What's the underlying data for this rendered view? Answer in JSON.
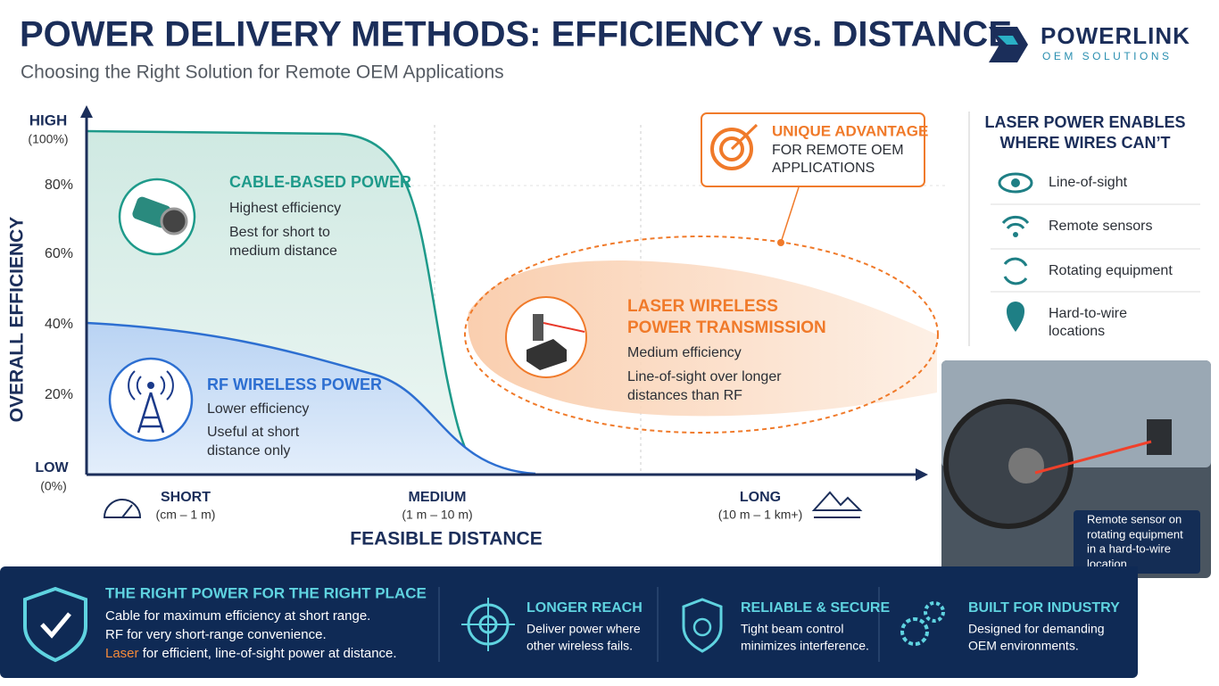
{
  "header": {
    "title": "POWER DELIVERY METHODS: EFFICIENCY vs. DISTANCE",
    "subtitle": "Choosing the Right Solution for Remote OEM Applications"
  },
  "logo": {
    "name": "POWERLINK",
    "tagline": "OEM SOLUTIONS"
  },
  "chart": {
    "y_axis_title": "OVERALL EFFICIENCY",
    "y_top": {
      "label": "HIGH",
      "note": "(100%)"
    },
    "y_ticks": [
      "80%",
      "60%",
      "40%",
      "20%"
    ],
    "y_bottom": {
      "label": "LOW",
      "note": "(0%)"
    },
    "x_axis_title": "FEASIBLE DISTANCE",
    "x_labels": [
      {
        "label": "SHORT",
        "range": "(cm – 1 m)"
      },
      {
        "label": "MEDIUM",
        "range": "(1 m – 10 m)"
      },
      {
        "label": "LONG",
        "range": "(10 m – 1 km+)"
      }
    ],
    "cable": {
      "title": "CABLE-BASED POWER",
      "lines": [
        "Highest efficiency",
        "Best for short to",
        "medium distance"
      ]
    },
    "rf": {
      "title": "RF WIRELESS POWER",
      "lines": [
        "Lower efficiency",
        "Useful at short",
        "distance only"
      ]
    },
    "laser": {
      "title": [
        "LASER WIRELESS",
        "POWER TRANSMISSION"
      ],
      "lines": [
        "Medium efficiency",
        "Line-of-sight over longer",
        "distances than RF"
      ]
    },
    "advantage": {
      "title": "UNIQUE ADVANTAGE",
      "lines": [
        "FOR REMOTE OEM",
        "APPLICATIONS"
      ]
    }
  },
  "sidebar": {
    "title": [
      "LASER POWER ENABLES",
      "WHERE WIRES CAN’T"
    ],
    "items": [
      [
        "Line-of-sight"
      ],
      [
        "Remote sensors"
      ],
      [
        "Rotating equipment"
      ],
      [
        "Hard-to-wire",
        "locations"
      ]
    ],
    "photo_caption": [
      "Remote sensor on",
      "rotating equipment",
      "in a hard-to-wire",
      "location"
    ]
  },
  "footer": {
    "main": {
      "title": "THE RIGHT POWER FOR THE RIGHT PLACE",
      "lines": [
        "Cable for maximum efficiency at short range.",
        "RF for very short-range convenience."
      ],
      "highlight": "Laser",
      "last": " for efficient, line-of-sight power at distance."
    },
    "features": [
      {
        "title": "LONGER REACH",
        "lines": [
          "Deliver power where",
          "other wireless fails."
        ]
      },
      {
        "title": "RELIABLE & SECURE",
        "lines": [
          "Tight beam control",
          "minimizes interference."
        ]
      },
      {
        "title": "BUILT FOR INDUSTRY",
        "lines": [
          "Designed for demanding",
          "OEM environments."
        ]
      }
    ]
  }
}
